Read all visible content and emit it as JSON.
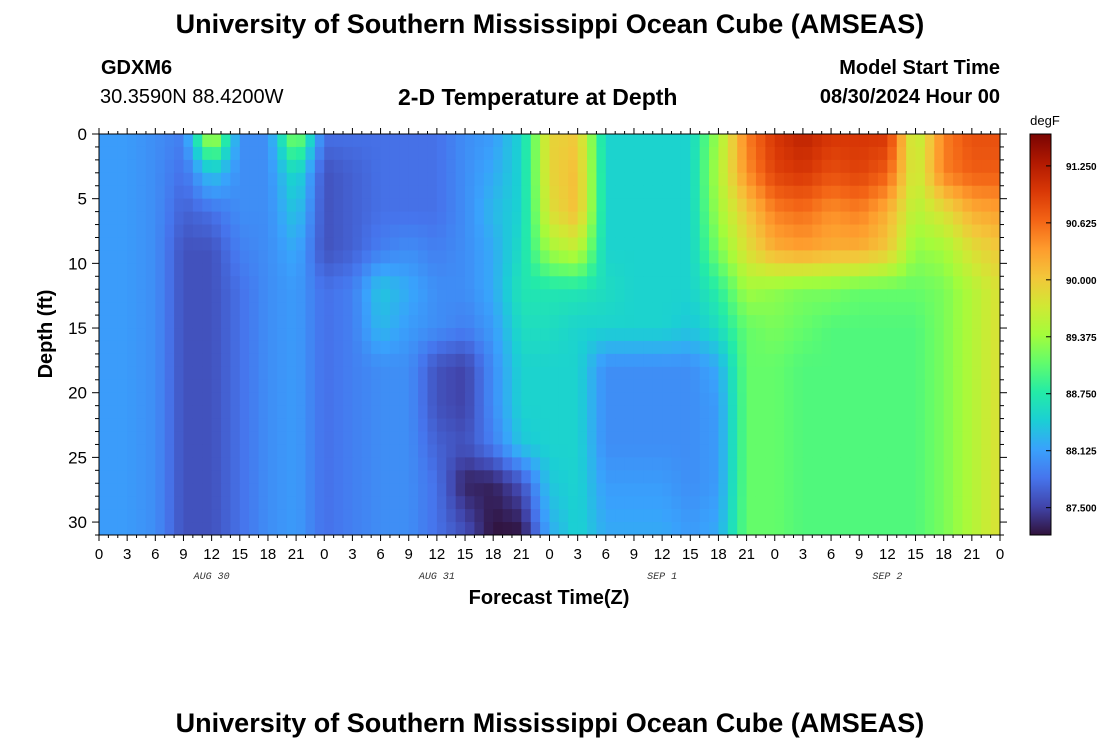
{
  "page": {
    "title": "University of Southern Mississippi Ocean Cube (AMSEAS)",
    "footer_title": "University of Southern Mississippi Ocean Cube (AMSEAS)",
    "station_id": "GDXM6",
    "station_coords": "30.3590N  88.4200W",
    "subtitle": "2-D Temperature at Depth",
    "model_start_label": "Model Start Time",
    "model_start_value": "08/30/2024 Hour 00"
  },
  "chart_data": {
    "type": "heatmap",
    "xlabel": "Forecast Time(Z)",
    "ylabel": "Depth (ft)",
    "colorbar_unit": "degF",
    "x_ticks": [
      "0",
      "3",
      "6",
      "9",
      "12",
      "15",
      "18",
      "21",
      "0",
      "3",
      "6",
      "9",
      "12",
      "15",
      "18",
      "21",
      "0",
      "3",
      "6",
      "9",
      "12",
      "15",
      "18",
      "21",
      "0",
      "3",
      "6",
      "9",
      "12",
      "15",
      "18",
      "21",
      "0"
    ],
    "day_labels": [
      {
        "label": "AUG 30",
        "hour": 12
      },
      {
        "label": "AUG 31",
        "hour": 36
      },
      {
        "label": "SEP 1",
        "hour": 60
      },
      {
        "label": "SEP 2",
        "hour": 84
      }
    ],
    "x_range_hours": [
      0,
      96
    ],
    "y_ticks": [
      0,
      5,
      10,
      15,
      20,
      25,
      30
    ],
    "y_range_ft": [
      0,
      31
    ],
    "colorbar_ticks": [
      "87.500",
      "88.125",
      "88.750",
      "89.375",
      "90.000",
      "90.625",
      "91.250"
    ],
    "colorbar_range": [
      87.2,
      91.6
    ],
    "colormap": [
      "#30123b",
      "#4145ab",
      "#4675ed",
      "#39a2fc",
      "#1bcfd4",
      "#24eca6",
      "#61fc6c",
      "#a4fc3b",
      "#d1e834",
      "#f3c63a",
      "#fe9b2d",
      "#f36315",
      "#d93806",
      "#b11901",
      "#7a0402"
    ],
    "grid_hours": [
      0,
      3,
      6,
      9,
      12,
      15,
      18,
      21,
      24,
      27,
      30,
      33,
      36,
      39,
      42,
      45,
      48,
      51,
      54,
      57,
      60,
      63,
      66,
      69,
      72,
      75,
      78,
      81,
      84,
      87,
      90,
      93,
      96
    ],
    "grid_depths_ft": [
      0,
      3,
      6,
      9,
      12,
      15,
      18,
      21,
      24,
      27,
      31
    ],
    "temperature_degF": [
      [
        88.1,
        88.1,
        88.0,
        87.9,
        89.7,
        88.0,
        88.0,
        89.4,
        87.8,
        87.8,
        87.8,
        87.8,
        87.8,
        88.0,
        88.1,
        88.5,
        89.9,
        90.0,
        88.5,
        88.5,
        88.5,
        88.5,
        89.4,
        90.5,
        91.0,
        91.2,
        91.0,
        91.0,
        91.0,
        89.5,
        90.5,
        90.8,
        90.8
      ],
      [
        88.1,
        88.1,
        88.0,
        87.8,
        88.4,
        88.0,
        88.0,
        88.6,
        87.6,
        87.7,
        87.8,
        87.8,
        87.8,
        88.0,
        88.2,
        88.5,
        89.9,
        90.1,
        88.5,
        88.5,
        88.5,
        88.5,
        89.5,
        90.4,
        90.9,
        91.0,
        90.8,
        90.9,
        90.7,
        89.6,
        90.5,
        90.7,
        90.7
      ],
      [
        88.1,
        88.1,
        88.0,
        87.7,
        87.8,
        88.0,
        88.0,
        88.4,
        87.6,
        87.7,
        87.8,
        87.8,
        87.8,
        88.0,
        88.3,
        88.5,
        89.8,
        90.1,
        88.5,
        88.5,
        88.5,
        88.5,
        89.4,
        90.0,
        90.5,
        90.6,
        90.4,
        90.5,
        90.2,
        89.5,
        89.8,
        90.2,
        90.3
      ],
      [
        88.1,
        88.1,
        88.0,
        87.6,
        87.6,
        87.9,
        88.0,
        88.2,
        87.6,
        87.7,
        87.9,
        88.0,
        87.9,
        88.0,
        88.2,
        88.6,
        89.4,
        89.6,
        88.5,
        88.5,
        88.5,
        88.5,
        89.2,
        89.8,
        90.2,
        90.3,
        90.2,
        90.2,
        90.0,
        89.3,
        89.4,
        89.8,
        90.0
      ],
      [
        88.1,
        88.1,
        88.0,
        87.6,
        87.6,
        87.8,
        88.0,
        88.1,
        87.8,
        87.9,
        88.4,
        88.2,
        88.0,
        88.0,
        88.2,
        88.7,
        88.7,
        88.7,
        88.6,
        88.5,
        88.5,
        88.5,
        88.8,
        89.4,
        89.3,
        89.2,
        89.2,
        89.1,
        89.1,
        89.1,
        89.2,
        89.5,
        89.8
      ],
      [
        88.1,
        88.1,
        88.0,
        87.6,
        87.6,
        87.8,
        88.0,
        88.1,
        87.8,
        87.9,
        88.3,
        88.1,
        88.0,
        87.9,
        88.1,
        88.6,
        88.6,
        88.5,
        88.5,
        88.5,
        88.5,
        88.4,
        88.6,
        89.1,
        89.2,
        89.1,
        89.0,
        89.0,
        89.0,
        89.0,
        89.2,
        89.5,
        89.8
      ],
      [
        88.1,
        88.1,
        88.0,
        87.6,
        87.6,
        87.8,
        88.0,
        88.1,
        87.8,
        87.9,
        88.0,
        88.0,
        87.6,
        87.5,
        88.0,
        88.5,
        88.5,
        88.5,
        88.0,
        88.0,
        88.0,
        88.0,
        88.2,
        89.1,
        89.1,
        89.0,
        89.0,
        89.0,
        89.0,
        89.0,
        89.2,
        89.5,
        89.8
      ],
      [
        88.1,
        88.1,
        88.0,
        87.6,
        87.6,
        87.8,
        88.0,
        88.1,
        87.8,
        87.9,
        88.0,
        88.0,
        87.6,
        87.5,
        88.0,
        88.5,
        88.5,
        88.5,
        88.0,
        88.0,
        88.0,
        88.0,
        88.1,
        89.1,
        89.1,
        89.0,
        89.0,
        89.0,
        89.0,
        89.0,
        89.2,
        89.5,
        89.8
      ],
      [
        88.1,
        88.1,
        88.0,
        87.6,
        87.6,
        87.8,
        88.0,
        88.1,
        87.8,
        87.9,
        88.0,
        88.0,
        87.7,
        87.6,
        87.9,
        88.4,
        88.5,
        88.5,
        88.0,
        88.0,
        88.0,
        88.0,
        88.1,
        89.1,
        89.1,
        89.0,
        89.0,
        89.0,
        89.0,
        89.0,
        89.2,
        89.5,
        89.8
      ],
      [
        88.1,
        88.1,
        88.0,
        87.6,
        87.6,
        87.8,
        88.0,
        88.1,
        87.8,
        87.9,
        88.0,
        88.0,
        87.8,
        87.3,
        87.3,
        87.6,
        88.4,
        88.5,
        88.1,
        88.1,
        88.1,
        88.0,
        88.1,
        89.1,
        89.1,
        89.0,
        89.0,
        89.0,
        89.0,
        89.0,
        89.2,
        89.5,
        89.8
      ],
      [
        88.1,
        88.1,
        88.0,
        87.6,
        87.6,
        87.8,
        88.0,
        88.1,
        87.8,
        87.9,
        88.0,
        88.0,
        87.8,
        87.6,
        87.2,
        87.2,
        88.2,
        88.5,
        88.2,
        88.2,
        88.2,
        88.1,
        88.2,
        89.1,
        89.1,
        89.0,
        89.0,
        89.0,
        89.0,
        89.0,
        89.2,
        89.5,
        89.8
      ]
    ]
  }
}
